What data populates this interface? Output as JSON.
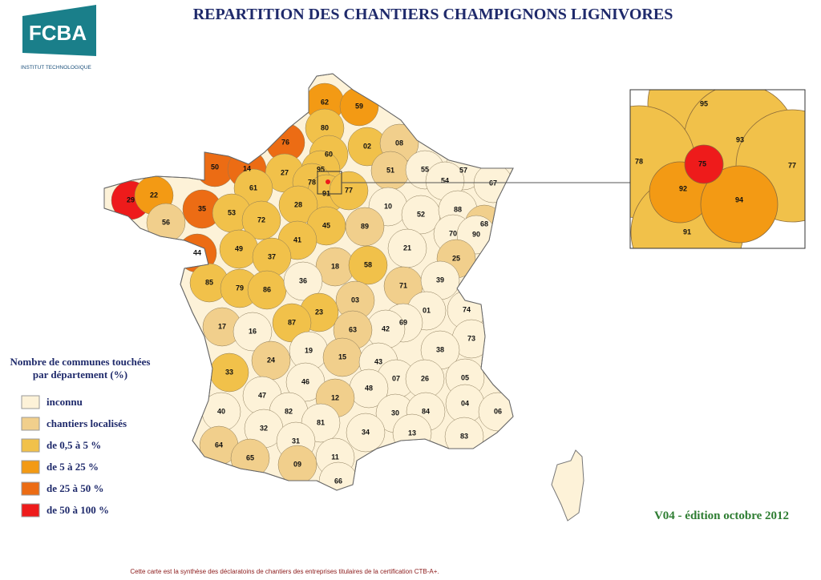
{
  "header": {
    "logo": "FCBA",
    "logo_subtitle": "INSTITUT  TECHNOLOGIQUE",
    "title": "REPARTITION DES CHANTIERS  CHAMPIGNONS LIGNIVORES"
  },
  "legend": {
    "title_lines": [
      "Nombre de communes touchées",
      "par département  (%)"
    ],
    "items": [
      {
        "label": "inconnu",
        "color": "#fdf2d8"
      },
      {
        "label": "chantiers localisés",
        "color": "#f1cf8c"
      },
      {
        "label": "de 0,5 à 5 %",
        "color": "#f1c14a"
      },
      {
        "label": "de 5 à 25 %",
        "color": "#f39a14"
      },
      {
        "label": "de 25 à 50 %",
        "color": "#ec6c14"
      },
      {
        "label": "de 50 à 100 %",
        "color": "#ee1b1b"
      }
    ]
  },
  "departments": [
    {
      "code": "62",
      "level": 3
    },
    {
      "code": "59",
      "level": 3
    },
    {
      "code": "80",
      "level": 2
    },
    {
      "code": "76",
      "level": 4
    },
    {
      "code": "02",
      "level": 2
    },
    {
      "code": "08",
      "level": 1
    },
    {
      "code": "60",
      "level": 2
    },
    {
      "code": "50",
      "level": 4
    },
    {
      "code": "14",
      "level": 4
    },
    {
      "code": "27",
      "level": 2
    },
    {
      "code": "95",
      "level": 2
    },
    {
      "code": "51",
      "level": 1
    },
    {
      "code": "55",
      "level": 0
    },
    {
      "code": "57",
      "level": 0
    },
    {
      "code": "67",
      "level": 0
    },
    {
      "code": "54",
      "level": 0
    },
    {
      "code": "29",
      "level": 5
    },
    {
      "code": "22",
      "level": 3
    },
    {
      "code": "61",
      "level": 2
    },
    {
      "code": "78",
      "level": 2
    },
    {
      "code": "91",
      "level": 2
    },
    {
      "code": "77",
      "level": 2
    },
    {
      "code": "35",
      "level": 4
    },
    {
      "code": "53",
      "level": 2
    },
    {
      "code": "72",
      "level": 2
    },
    {
      "code": "28",
      "level": 2
    },
    {
      "code": "10",
      "level": 0
    },
    {
      "code": "52",
      "level": 0
    },
    {
      "code": "88",
      "level": 0
    },
    {
      "code": "68",
      "level": 1
    },
    {
      "code": "56",
      "level": 1
    },
    {
      "code": "45",
      "level": 2
    },
    {
      "code": "89",
      "level": 1
    },
    {
      "code": "70",
      "level": 0
    },
    {
      "code": "90",
      "level": 0
    },
    {
      "code": "44",
      "level": 4
    },
    {
      "code": "49",
      "level": 2
    },
    {
      "code": "41",
      "level": 2
    },
    {
      "code": "21",
      "level": 0
    },
    {
      "code": "37",
      "level": 2
    },
    {
      "code": "18",
      "level": 1
    },
    {
      "code": "58",
      "level": 2
    },
    {
      "code": "25",
      "level": 1
    },
    {
      "code": "85",
      "level": 2
    },
    {
      "code": "79",
      "level": 2
    },
    {
      "code": "86",
      "level": 2
    },
    {
      "code": "36",
      "level": 0
    },
    {
      "code": "71",
      "level": 1
    },
    {
      "code": "39",
      "level": 0
    },
    {
      "code": "03",
      "level": 1
    },
    {
      "code": "01",
      "level": 0
    },
    {
      "code": "74",
      "level": 0
    },
    {
      "code": "23",
      "level": 2
    },
    {
      "code": "87",
      "level": 2
    },
    {
      "code": "17",
      "level": 1
    },
    {
      "code": "16",
      "level": 0
    },
    {
      "code": "69",
      "level": 0
    },
    {
      "code": "42",
      "level": 0
    },
    {
      "code": "63",
      "level": 1
    },
    {
      "code": "73",
      "level": 0
    },
    {
      "code": "38",
      "level": 0
    },
    {
      "code": "19",
      "level": 0
    },
    {
      "code": "24",
      "level": 1
    },
    {
      "code": "15",
      "level": 1
    },
    {
      "code": "43",
      "level": 0
    },
    {
      "code": "33",
      "level": 2
    },
    {
      "code": "07",
      "level": 0
    },
    {
      "code": "26",
      "level": 0
    },
    {
      "code": "05",
      "level": 0
    },
    {
      "code": "46",
      "level": 0
    },
    {
      "code": "48",
      "level": 0
    },
    {
      "code": "47",
      "level": 0
    },
    {
      "code": "12",
      "level": 1
    },
    {
      "code": "04",
      "level": 0
    },
    {
      "code": "06",
      "level": 0
    },
    {
      "code": "40",
      "level": 0
    },
    {
      "code": "82",
      "level": 0
    },
    {
      "code": "30",
      "level": 0
    },
    {
      "code": "84",
      "level": 0
    },
    {
      "code": "81",
      "level": 0
    },
    {
      "code": "32",
      "level": 0
    },
    {
      "code": "34",
      "level": 0
    },
    {
      "code": "13",
      "level": 0
    },
    {
      "code": "83",
      "level": 0
    },
    {
      "code": "31",
      "level": 0
    },
    {
      "code": "64",
      "level": 1
    },
    {
      "code": "65",
      "level": 1
    },
    {
      "code": "09",
      "level": 1
    },
    {
      "code": "11",
      "level": 0
    },
    {
      "code": "66",
      "level": 0
    }
  ],
  "inset": [
    {
      "code": "95",
      "level": 2
    },
    {
      "code": "93",
      "level": 2
    },
    {
      "code": "78",
      "level": 2
    },
    {
      "code": "77",
      "level": 2
    },
    {
      "code": "91",
      "level": 2
    },
    {
      "code": "92",
      "level": 3
    },
    {
      "code": "94",
      "level": 3
    },
    {
      "code": "75",
      "level": 5
    }
  ],
  "version": "V04 -  édition octobre 2012",
  "footer": "Cette carte est la synthèse des déclaratoins de chantiers des entreprises titulaires de la certification CTB-A+."
}
